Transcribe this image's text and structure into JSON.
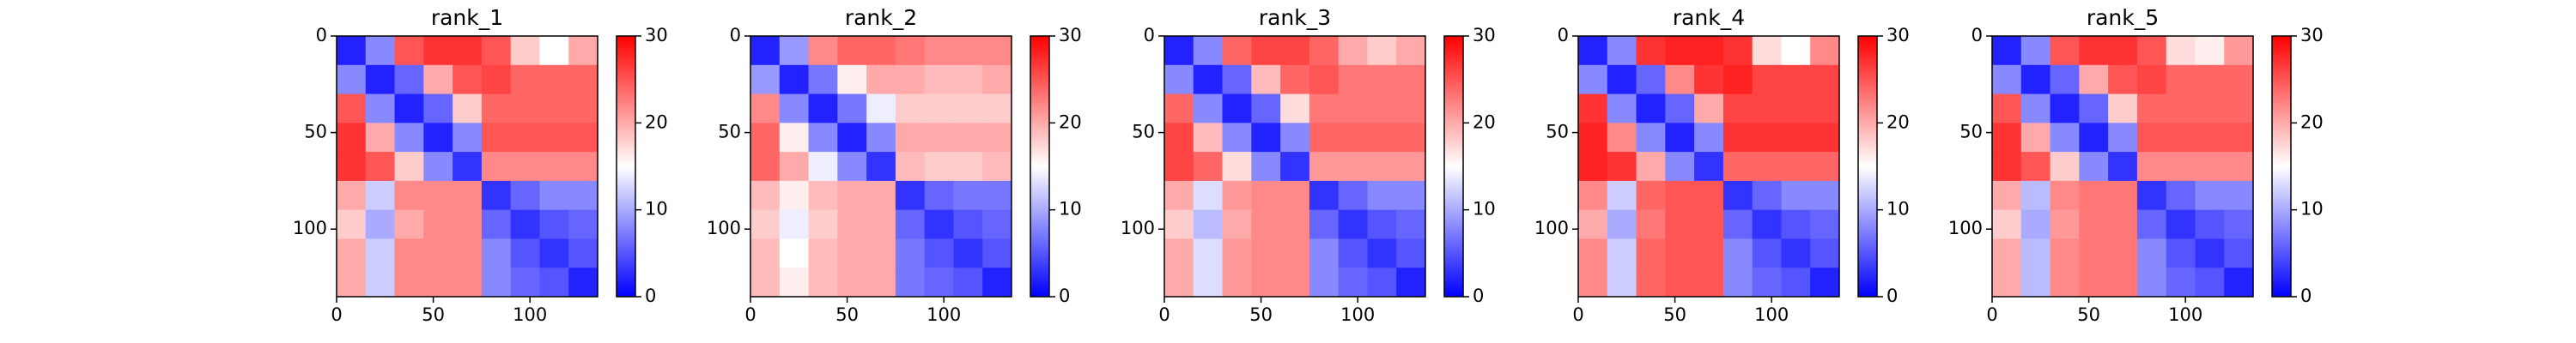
{
  "chart_data": [
    {
      "type": "heatmap",
      "title": "rank_1",
      "colormap": "bwr",
      "clim": [
        0,
        30
      ],
      "cticks": [
        0,
        10,
        20,
        30
      ],
      "xlim": [
        0,
        135
      ],
      "ylim": [
        135,
        0
      ],
      "xticks": [
        0,
        50,
        100
      ],
      "yticks": [
        0,
        50,
        100
      ],
      "bins": [
        0,
        15,
        30,
        45,
        60,
        75,
        90,
        105,
        120,
        135
      ],
      "z": [
        [
          2,
          8,
          25,
          27,
          27,
          25,
          18,
          15,
          20
        ],
        [
          8,
          2,
          6,
          20,
          25,
          26,
          24,
          24,
          24
        ],
        [
          25,
          8,
          2,
          6,
          18,
          24,
          24,
          24,
          24
        ],
        [
          27,
          20,
          8,
          2,
          8,
          25,
          25,
          25,
          25
        ],
        [
          27,
          25,
          18,
          8,
          3,
          22,
          22,
          22,
          22
        ],
        [
          20,
          12,
          22,
          22,
          22,
          3,
          6,
          8,
          8
        ],
        [
          18,
          10,
          20,
          22,
          22,
          6,
          3,
          5,
          6
        ],
        [
          20,
          12,
          22,
          22,
          22,
          8,
          5,
          3,
          5
        ],
        [
          20,
          12,
          22,
          22,
          22,
          8,
          6,
          5,
          2
        ]
      ]
    },
    {
      "type": "heatmap",
      "title": "rank_2",
      "colormap": "bwr",
      "clim": [
        0,
        30
      ],
      "cticks": [
        0,
        10,
        20,
        30
      ],
      "xlim": [
        0,
        135
      ],
      "ylim": [
        135,
        0
      ],
      "xticks": [
        0,
        50,
        100
      ],
      "yticks": [
        0,
        50,
        100
      ],
      "bins": [
        0,
        15,
        30,
        45,
        60,
        75,
        90,
        105,
        120,
        135
      ],
      "z": [
        [
          2,
          9,
          22,
          24,
          24,
          23,
          22,
          22,
          22
        ],
        [
          9,
          2,
          7,
          16,
          20,
          20,
          19,
          19,
          20
        ],
        [
          22,
          8,
          2,
          7,
          14,
          18,
          18,
          18,
          18
        ],
        [
          24,
          16,
          8,
          2,
          8,
          20,
          20,
          20,
          20
        ],
        [
          24,
          20,
          14,
          8,
          3,
          19,
          18,
          18,
          19
        ],
        [
          19,
          16,
          19,
          20,
          20,
          3,
          6,
          7,
          7
        ],
        [
          18,
          14,
          18,
          20,
          20,
          6,
          3,
          5,
          6
        ],
        [
          19,
          15,
          19,
          20,
          20,
          7,
          5,
          3,
          5
        ],
        [
          19,
          16,
          19,
          20,
          20,
          7,
          6,
          5,
          2
        ]
      ]
    },
    {
      "type": "heatmap",
      "title": "rank_3",
      "colormap": "bwr",
      "clim": [
        0,
        30
      ],
      "cticks": [
        0,
        10,
        20,
        30
      ],
      "xlim": [
        0,
        135
      ],
      "ylim": [
        135,
        0
      ],
      "xticks": [
        0,
        50,
        100
      ],
      "yticks": [
        0,
        50,
        100
      ],
      "bins": [
        0,
        15,
        30,
        45,
        60,
        75,
        90,
        105,
        120,
        135
      ],
      "z": [
        [
          2,
          8,
          24,
          26,
          26,
          24,
          20,
          18,
          20
        ],
        [
          8,
          2,
          6,
          19,
          24,
          25,
          23,
          23,
          23
        ],
        [
          24,
          8,
          2,
          6,
          17,
          23,
          23,
          23,
          23
        ],
        [
          26,
          19,
          8,
          2,
          8,
          24,
          24,
          24,
          24
        ],
        [
          26,
          24,
          17,
          8,
          3,
          21,
          21,
          21,
          21
        ],
        [
          20,
          13,
          21,
          22,
          22,
          3,
          6,
          8,
          8
        ],
        [
          18,
          11,
          20,
          22,
          22,
          6,
          3,
          5,
          6
        ],
        [
          20,
          13,
          21,
          22,
          22,
          8,
          5,
          3,
          5
        ],
        [
          20,
          13,
          21,
          22,
          22,
          8,
          6,
          5,
          2
        ]
      ]
    },
    {
      "type": "heatmap",
      "title": "rank_4",
      "colormap": "bwr",
      "clim": [
        0,
        30
      ],
      "cticks": [
        0,
        10,
        20,
        30
      ],
      "xlim": [
        0,
        135
      ],
      "ylim": [
        135,
        0
      ],
      "xticks": [
        0,
        50,
        100
      ],
      "yticks": [
        0,
        50,
        100
      ],
      "bins": [
        0,
        15,
        30,
        45,
        60,
        75,
        90,
        105,
        120,
        135
      ],
      "z": [
        [
          2,
          8,
          27,
          28,
          28,
          27,
          17,
          15,
          22
        ],
        [
          8,
          2,
          6,
          22,
          27,
          28,
          26,
          26,
          26
        ],
        [
          27,
          8,
          2,
          6,
          20,
          26,
          26,
          26,
          26
        ],
        [
          28,
          22,
          8,
          2,
          8,
          27,
          27,
          27,
          27
        ],
        [
          28,
          27,
          20,
          8,
          3,
          24,
          24,
          24,
          24
        ],
        [
          22,
          12,
          24,
          25,
          25,
          3,
          6,
          8,
          8
        ],
        [
          20,
          10,
          23,
          25,
          25,
          6,
          3,
          5,
          6
        ],
        [
          22,
          12,
          24,
          25,
          25,
          8,
          5,
          3,
          5
        ],
        [
          22,
          12,
          24,
          25,
          25,
          8,
          6,
          5,
          2
        ]
      ]
    },
    {
      "type": "heatmap",
      "title": "rank_5",
      "colormap": "bwr",
      "clim": [
        0,
        30
      ],
      "cticks": [
        0,
        10,
        20,
        30
      ],
      "xlim": [
        0,
        135
      ],
      "ylim": [
        135,
        0
      ],
      "xticks": [
        0,
        50,
        100
      ],
      "yticks": [
        0,
        50,
        100
      ],
      "bins": [
        0,
        15,
        30,
        45,
        60,
        75,
        90,
        105,
        120,
        135
      ],
      "z": [
        [
          2,
          8,
          25,
          27,
          27,
          25,
          17,
          16,
          21
        ],
        [
          8,
          2,
          6,
          20,
          25,
          26,
          24,
          24,
          24
        ],
        [
          25,
          8,
          2,
          6,
          18,
          24,
          24,
          24,
          24
        ],
        [
          27,
          20,
          8,
          2,
          8,
          25,
          25,
          25,
          25
        ],
        [
          27,
          25,
          18,
          8,
          3,
          22,
          22,
          22,
          22
        ],
        [
          20,
          11,
          22,
          23,
          23,
          3,
          6,
          8,
          8
        ],
        [
          18,
          10,
          21,
          23,
          23,
          6,
          3,
          5,
          6
        ],
        [
          20,
          11,
          22,
          23,
          23,
          8,
          5,
          3,
          5
        ],
        [
          20,
          11,
          22,
          23,
          23,
          8,
          6,
          5,
          2
        ]
      ]
    }
  ]
}
